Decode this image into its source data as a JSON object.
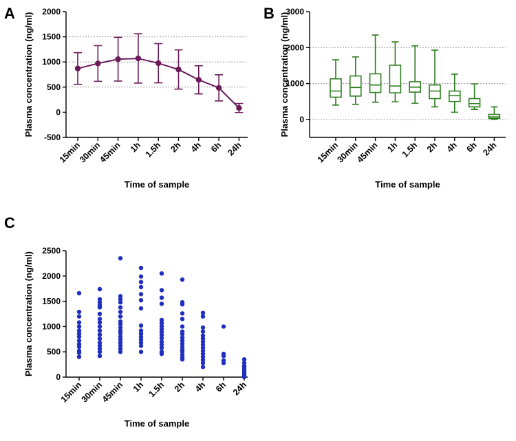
{
  "chart_data": [
    {
      "panel": "A",
      "type": "line",
      "xlabel": "Time of sample",
      "ylabel": "Plasma concentration (ng/ml)",
      "categories": [
        "15min",
        "30min",
        "45min",
        "1h",
        "1.5h",
        "2h",
        "4h",
        "6h",
        "24h"
      ],
      "ylim": [
        -500,
        2000
      ],
      "yticks": [
        -500,
        0,
        500,
        1000,
        1500,
        2000
      ],
      "grid_lines": [
        500,
        1000,
        1500
      ],
      "color": "#6b1a5a",
      "mean": [
        870,
        970,
        1055,
        1070,
        975,
        850,
        645,
        485,
        85
      ],
      "sd_upper": [
        1185,
        1325,
        1490,
        1560,
        1365,
        1240,
        925,
        745,
        175
      ],
      "sd_lower": [
        555,
        615,
        620,
        580,
        585,
        460,
        365,
        225,
        -5
      ]
    },
    {
      "panel": "B",
      "type": "box",
      "xlabel": "Time of sample",
      "ylabel": "Plasma concentration (ng/ml)",
      "categories": [
        "15min",
        "30min",
        "45min",
        "1h",
        "1.5h",
        "2h",
        "4h",
        "6h",
        "24h"
      ],
      "ylim": [
        -500,
        3000
      ],
      "yticks": [
        0,
        1000,
        2000,
        3000
      ],
      "grid_lines": [
        0,
        1000,
        2000
      ],
      "color": "#2e7d1f",
      "boxes": [
        {
          "min": 400,
          "q1": 620,
          "median": 790,
          "q3": 1130,
          "max": 1660
        },
        {
          "min": 420,
          "q1": 650,
          "median": 890,
          "q3": 1210,
          "max": 1740
        },
        {
          "min": 480,
          "q1": 750,
          "median": 960,
          "q3": 1270,
          "max": 2350
        },
        {
          "min": 490,
          "q1": 740,
          "median": 930,
          "q3": 1510,
          "max": 2160
        },
        {
          "min": 450,
          "q1": 760,
          "median": 900,
          "q3": 1050,
          "max": 2050
        },
        {
          "min": 350,
          "q1": 580,
          "median": 790,
          "q3": 960,
          "max": 1930
        },
        {
          "min": 200,
          "q1": 500,
          "median": 660,
          "q3": 790,
          "max": 1260
        },
        {
          "min": 280,
          "q1": 350,
          "median": 440,
          "q3": 580,
          "max": 990
        },
        {
          "min": 0,
          "q1": 30,
          "median": 70,
          "q3": 140,
          "max": 350
        }
      ]
    },
    {
      "panel": "C",
      "type": "scatter",
      "xlabel": "Time of sample",
      "ylabel": "Plasma concentration (ng/ml)",
      "categories": [
        "15min",
        "30min",
        "45min",
        "1h",
        "1.5h",
        "2h",
        "4h",
        "6h",
        "24h"
      ],
      "ylim": [
        0,
        2500
      ],
      "yticks": [
        0,
        500,
        1000,
        1500,
        2000,
        2500
      ],
      "color": "#1f2fbf",
      "points": [
        [
          1660,
          1290,
          1200,
          1080,
          1000,
          920,
          860,
          800,
          720,
          650,
          600,
          520,
          480,
          400
        ],
        [
          1740,
          1540,
          1480,
          1420,
          1380,
          1250,
          1150,
          1080,
          1000,
          920,
          840,
          760,
          680,
          620,
          560,
          500,
          420
        ],
        [
          2350,
          1600,
          1540,
          1480,
          1380,
          1290,
          1200,
          1100,
          1050,
          980,
          920,
          870,
          800,
          740,
          680,
          620,
          560,
          500
        ],
        [
          2160,
          1990,
          1880,
          1780,
          1640,
          1520,
          1360,
          1020,
          920,
          860,
          800,
          740,
          680,
          620,
          500
        ],
        [
          2050,
          1720,
          1570,
          1450,
          1130,
          1070,
          1010,
          950,
          890,
          830,
          770,
          700,
          640,
          580,
          500,
          460
        ],
        [
          1930,
          1480,
          1440,
          1260,
          1150,
          1000,
          900,
          850,
          780,
          720,
          660,
          600,
          540,
          500,
          440,
          380,
          350
        ],
        [
          1270,
          1200,
          980,
          900,
          820,
          760,
          700,
          640,
          580,
          520,
          460,
          400,
          340,
          280,
          200
        ],
        [
          1000,
          460,
          420,
          330,
          280
        ],
        [
          350,
          280,
          220,
          180,
          140,
          100,
          70,
          40,
          20,
          0
        ]
      ]
    }
  ]
}
